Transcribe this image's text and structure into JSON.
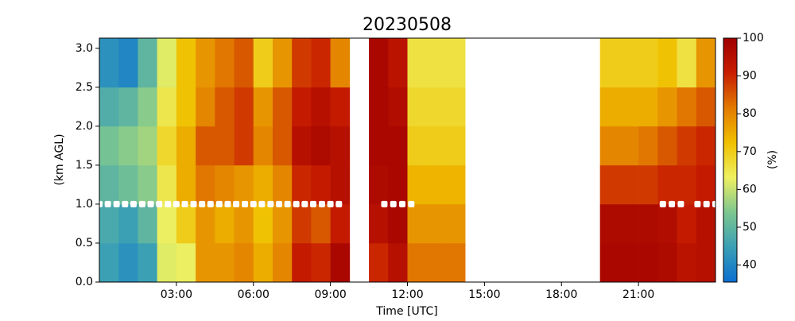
{
  "chart_data": {
    "type": "heatmap",
    "title": "20230508",
    "xlabel": "Time [UTC]",
    "ylabel": "(km AGL)",
    "colorbar_label": "(%)",
    "x_edges": [
      0,
      0.75,
      1.5,
      2.25,
      3,
      3.75,
      4.5,
      5.25,
      6,
      6.75,
      7.5,
      8.25,
      9,
      9.75,
      10.5,
      11.25,
      12,
      12.75,
      13.5,
      14.25,
      15,
      15.75,
      16.5,
      17.25,
      18,
      18.75,
      19.5,
      20.25,
      21,
      21.75,
      22.5,
      23.25,
      24
    ],
    "y_edges": [
      0,
      0.5,
      1,
      1.5,
      2,
      2.5,
      3.13
    ],
    "z": [
      [
        45,
        42,
        45,
        62,
        63,
        78,
        78,
        80,
        75,
        80,
        92,
        90,
        98,
        null,
        90,
        95,
        82,
        82,
        82,
        null,
        null,
        null,
        null,
        null,
        null,
        null,
        98,
        98,
        98,
        97,
        94,
        95
      ],
      [
        47,
        45,
        50,
        63,
        70,
        78,
        75,
        78,
        72,
        78,
        88,
        85,
        92,
        null,
        95,
        98,
        78,
        78,
        78,
        null,
        null,
        null,
        null,
        null,
        null,
        null,
        97,
        97,
        97,
        96,
        92,
        95
      ],
      [
        50,
        52,
        55,
        65,
        75,
        82,
        80,
        78,
        75,
        80,
        90,
        92,
        95,
        null,
        97,
        98,
        74,
        74,
        74,
        null,
        null,
        null,
        null,
        null,
        null,
        null,
        88,
        88,
        88,
        90,
        90,
        92
      ],
      [
        53,
        55,
        57,
        68,
        75,
        85,
        85,
        88,
        80,
        85,
        95,
        97,
        95,
        null,
        98,
        98,
        70,
        70,
        70,
        null,
        null,
        null,
        null,
        null,
        null,
        null,
        80,
        80,
        82,
        85,
        88,
        90
      ],
      [
        48,
        50,
        55,
        65,
        72,
        80,
        85,
        88,
        78,
        85,
        92,
        95,
        92,
        null,
        98,
        96,
        68,
        68,
        68,
        null,
        null,
        null,
        null,
        null,
        null,
        null,
        75,
        75,
        75,
        78,
        82,
        85
      ],
      [
        42,
        40,
        50,
        62,
        72,
        78,
        82,
        85,
        70,
        78,
        88,
        90,
        80,
        null,
        98,
        94,
        66,
        66,
        66,
        null,
        null,
        null,
        null,
        null,
        null,
        null,
        70,
        70,
        70,
        72,
        66,
        78
      ]
    ],
    "markers": {
      "y": 1.0,
      "color": "#ffffff",
      "x": [
        0,
        0.33,
        0.67,
        1,
        1.33,
        1.67,
        2,
        2.33,
        2.67,
        3,
        3.33,
        3.67,
        4,
        4.33,
        4.67,
        5,
        5.33,
        5.67,
        6,
        6.33,
        6.67,
        7,
        7.33,
        7.67,
        8,
        8.33,
        8.67,
        9,
        9.33,
        11.1,
        11.45,
        11.8,
        12.15,
        21.95,
        22.3,
        22.65,
        23.3,
        23.65,
        24
      ]
    },
    "xlim": [
      0,
      24
    ],
    "xticks": [
      {
        "value": 3,
        "label": "03:00"
      },
      {
        "value": 6,
        "label": "06:00"
      },
      {
        "value": 9,
        "label": "09:00"
      },
      {
        "value": 12,
        "label": "12:00"
      },
      {
        "value": 15,
        "label": "15:00"
      },
      {
        "value": 18,
        "label": "18:00"
      },
      {
        "value": 21,
        "label": "21:00"
      }
    ],
    "ylim": [
      0,
      3.13
    ],
    "yticks": [
      {
        "value": 0,
        "label": "0.0"
      },
      0.5,
      {
        "value": 1,
        "label": "1.0"
      },
      1.5,
      {
        "value": 2,
        "label": "2.0"
      },
      2.5,
      {
        "value": 3,
        "label": "3.0"
      }
    ],
    "clim": [
      35.5,
      100
    ],
    "cticks": [
      40,
      50,
      60,
      70,
      80,
      90,
      100
    ],
    "colormap": [
      "#0a6fd0",
      "#3a9fb5",
      "#7cc690",
      "#eef060",
      "#f0c000",
      "#e27a00",
      "#c81e00",
      "#a00000"
    ]
  }
}
